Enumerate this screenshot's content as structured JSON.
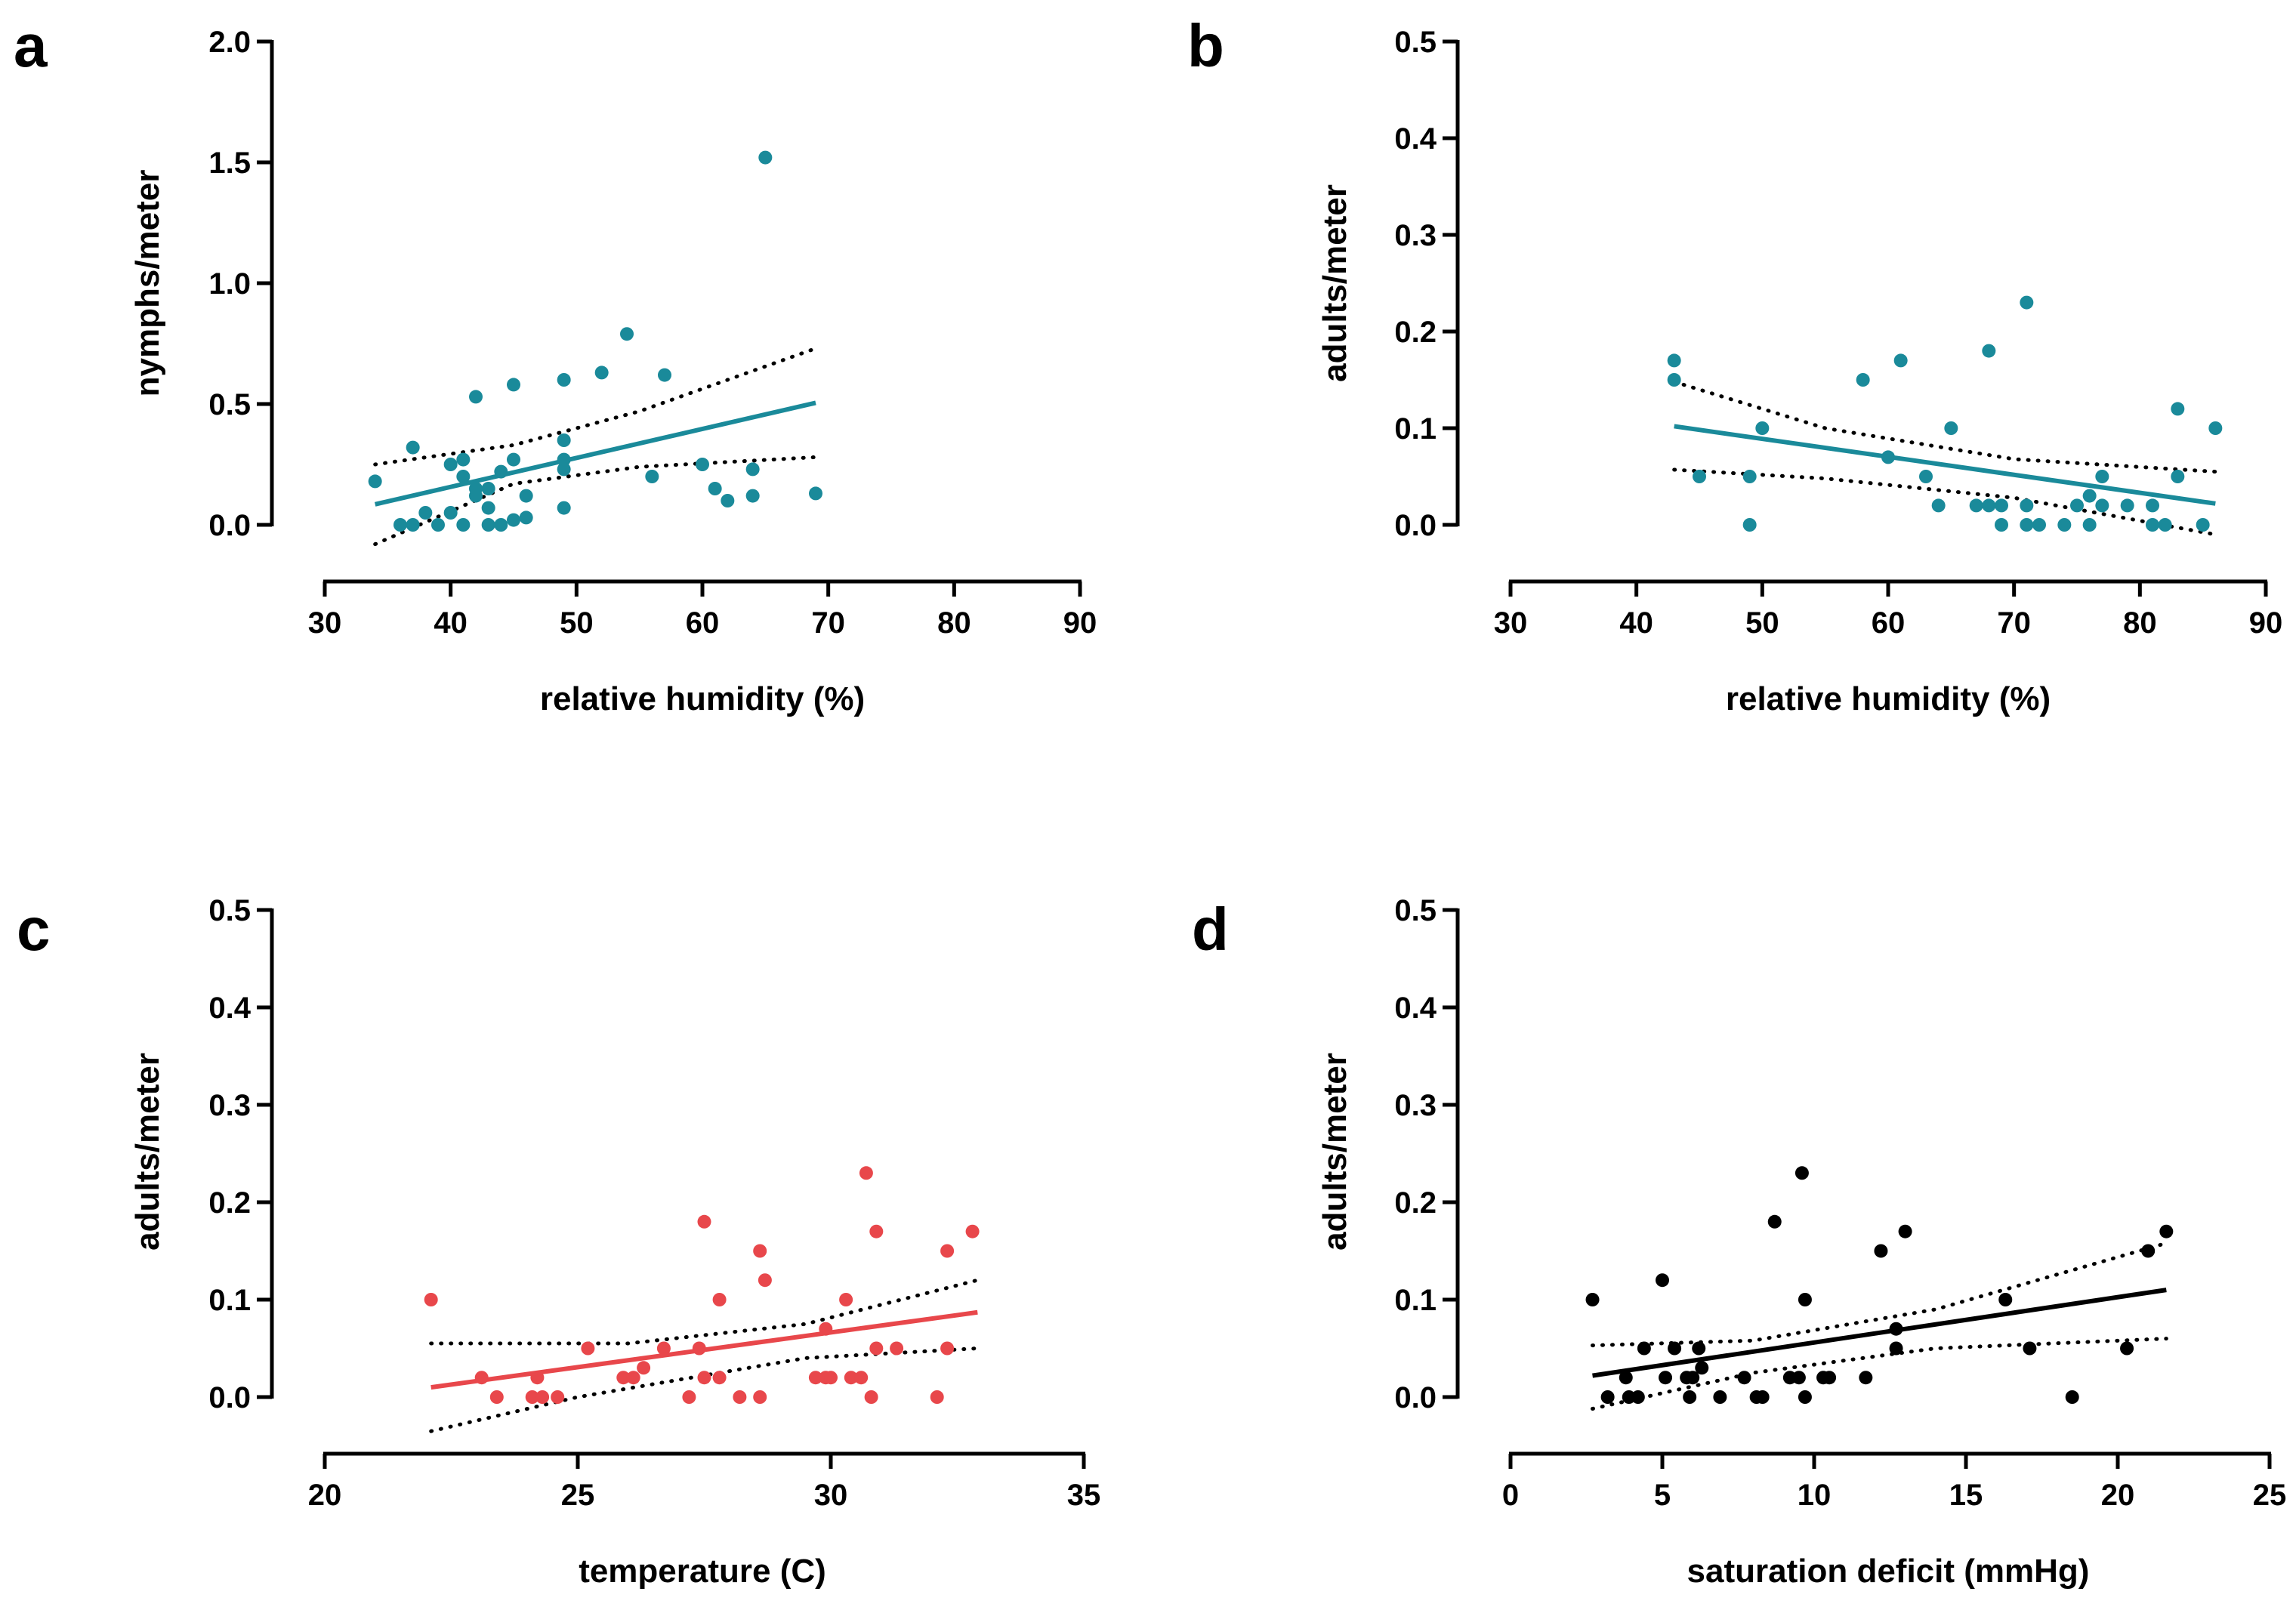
{
  "chart_data": [
    {
      "panel": "a",
      "type": "scatter",
      "xlabel": "relative humidity (%)",
      "ylabel": "nymphs/meter",
      "xlim": [
        30,
        90
      ],
      "ylim": [
        0,
        2.0
      ],
      "x_ticks": [
        "30",
        "40",
        "50",
        "60",
        "70",
        "80",
        "90"
      ],
      "y_ticks": [
        "0.0",
        "0.5",
        "1.0",
        "1.5",
        "2.0"
      ],
      "x_tick_values": [
        30,
        40,
        50,
        60,
        70,
        80,
        90
      ],
      "y_tick_values": [
        0,
        0.5,
        1.0,
        1.5,
        2.0
      ],
      "color": "#1a8a9a",
      "points": [
        [
          34,
          0.18
        ],
        [
          36,
          0.0
        ],
        [
          37,
          0.0
        ],
        [
          37,
          0.32
        ],
        [
          38,
          0.05
        ],
        [
          39,
          0.0
        ],
        [
          40,
          0.25
        ],
        [
          40,
          0.05
        ],
        [
          41,
          0.27
        ],
        [
          41,
          0.0
        ],
        [
          41,
          0.2
        ],
        [
          42,
          0.53
        ],
        [
          42,
          0.12
        ],
        [
          42,
          0.15
        ],
        [
          43,
          0.15
        ],
        [
          43,
          0.0
        ],
        [
          43,
          0.07
        ],
        [
          44,
          0.22
        ],
        [
          44,
          0.0
        ],
        [
          45,
          0.58
        ],
        [
          45,
          0.27
        ],
        [
          45,
          0.02
        ],
        [
          46,
          0.03
        ],
        [
          46,
          0.12
        ],
        [
          49,
          0.6
        ],
        [
          49,
          0.35
        ],
        [
          49,
          0.27
        ],
        [
          49,
          0.23
        ],
        [
          49,
          0.07
        ],
        [
          52,
          0.63
        ],
        [
          54,
          0.79
        ],
        [
          56,
          0.2
        ],
        [
          57,
          0.62
        ],
        [
          60,
          0.25
        ],
        [
          61,
          0.15
        ],
        [
          62,
          0.1
        ],
        [
          64,
          0.23
        ],
        [
          64,
          0.12
        ],
        [
          65,
          1.52
        ],
        [
          69,
          0.13
        ]
      ],
      "fit": [
        [
          34,
          0.085
        ],
        [
          69,
          0.505
        ]
      ],
      "ci_upper": [
        [
          34,
          0.25
        ],
        [
          45,
          0.33
        ],
        [
          55,
          0.47
        ],
        [
          69,
          0.73
        ]
      ],
      "ci_lower": [
        [
          34,
          -0.08
        ],
        [
          45,
          0.17
        ],
        [
          55,
          0.24
        ],
        [
          69,
          0.28
        ]
      ]
    },
    {
      "panel": "b",
      "type": "scatter",
      "xlabel": "relative humidity (%)",
      "ylabel": "adults/meter",
      "xlim": [
        30,
        90
      ],
      "ylim": [
        0,
        0.5
      ],
      "x_ticks": [
        "30",
        "40",
        "50",
        "60",
        "70",
        "80",
        "90"
      ],
      "y_ticks": [
        "0.0",
        "0.1",
        "0.2",
        "0.3",
        "0.4",
        "0.5"
      ],
      "x_tick_values": [
        30,
        40,
        50,
        60,
        70,
        80,
        90
      ],
      "y_tick_values": [
        0,
        0.1,
        0.2,
        0.3,
        0.4,
        0.5
      ],
      "color": "#1a8a9a",
      "points": [
        [
          43,
          0.17
        ],
        [
          43,
          0.15
        ],
        [
          45,
          0.05
        ],
        [
          49,
          0.05
        ],
        [
          49,
          0.0
        ],
        [
          50,
          0.1
        ],
        [
          58,
          0.15
        ],
        [
          60,
          0.07
        ],
        [
          61,
          0.17
        ],
        [
          63,
          0.05
        ],
        [
          64,
          0.02
        ],
        [
          65,
          0.1
        ],
        [
          67,
          0.02
        ],
        [
          68,
          0.18
        ],
        [
          68,
          0.02
        ],
        [
          69,
          0.02
        ],
        [
          69,
          0.0
        ],
        [
          71,
          0.23
        ],
        [
          71,
          0.02
        ],
        [
          71,
          0.0
        ],
        [
          72,
          0.0
        ],
        [
          74,
          0.0
        ],
        [
          75,
          0.02
        ],
        [
          76,
          0.03
        ],
        [
          76,
          0.0
        ],
        [
          77,
          0.05
        ],
        [
          77,
          0.02
        ],
        [
          79,
          0.02
        ],
        [
          81,
          0.02
        ],
        [
          81,
          0.0
        ],
        [
          82,
          0.0
        ],
        [
          83,
          0.12
        ],
        [
          83,
          0.05
        ],
        [
          85,
          0.0
        ],
        [
          86,
          0.1
        ]
      ],
      "fit": [
        [
          43,
          0.102
        ],
        [
          86,
          0.022
        ]
      ],
      "ci_upper": [
        [
          43,
          0.148
        ],
        [
          55,
          0.1
        ],
        [
          70,
          0.068
        ],
        [
          86,
          0.055
        ]
      ],
      "ci_lower": [
        [
          43,
          0.057
        ],
        [
          55,
          0.048
        ],
        [
          70,
          0.028
        ],
        [
          86,
          -0.01
        ]
      ]
    },
    {
      "panel": "c",
      "type": "scatter",
      "xlabel": "temperature (C)",
      "ylabel": "adults/meter",
      "xlim": [
        20,
        35
      ],
      "ylim": [
        0,
        0.5
      ],
      "x_ticks": [
        "20",
        "25",
        "30",
        "35"
      ],
      "y_ticks": [
        "0.0",
        "0.1",
        "0.2",
        "0.3",
        "0.4",
        "0.5"
      ],
      "x_tick_values": [
        20,
        25,
        30,
        35
      ],
      "y_tick_values": [
        0,
        0.1,
        0.2,
        0.3,
        0.4,
        0.5
      ],
      "color": "#e8474b",
      "points": [
        [
          22.1,
          0.1
        ],
        [
          23.1,
          0.02
        ],
        [
          23.4,
          0.0
        ],
        [
          24.1,
          0.0
        ],
        [
          24.2,
          0.02
        ],
        [
          24.3,
          0.0
        ],
        [
          24.6,
          0.0
        ],
        [
          25.2,
          0.05
        ],
        [
          25.9,
          0.02
        ],
        [
          26.1,
          0.02
        ],
        [
          26.3,
          0.03
        ],
        [
          26.7,
          0.05
        ],
        [
          27.2,
          0.0
        ],
        [
          27.4,
          0.05
        ],
        [
          27.5,
          0.18
        ],
        [
          27.5,
          0.02
        ],
        [
          27.8,
          0.02
        ],
        [
          27.8,
          0.1
        ],
        [
          28.2,
          0.0
        ],
        [
          28.6,
          0.15
        ],
        [
          28.6,
          0.0
        ],
        [
          28.7,
          0.12
        ],
        [
          29.7,
          0.02
        ],
        [
          29.9,
          0.07
        ],
        [
          29.9,
          0.02
        ],
        [
          30.0,
          0.02
        ],
        [
          30.3,
          0.1
        ],
        [
          30.4,
          0.02
        ],
        [
          30.6,
          0.02
        ],
        [
          30.7,
          0.23
        ],
        [
          30.8,
          0.0
        ],
        [
          30.9,
          0.17
        ],
        [
          30.9,
          0.05
        ],
        [
          31.3,
          0.05
        ],
        [
          32.1,
          0.0
        ],
        [
          32.3,
          0.15
        ],
        [
          32.3,
          0.05
        ],
        [
          32.8,
          0.17
        ]
      ],
      "fit": [
        [
          22.1,
          0.01
        ],
        [
          32.9,
          0.087
        ]
      ],
      "ci_upper": [
        [
          22.1,
          0.055
        ],
        [
          26,
          0.055
        ],
        [
          29.5,
          0.075
        ],
        [
          32.9,
          0.12
        ]
      ],
      "ci_lower": [
        [
          22.1,
          -0.035
        ],
        [
          25,
          0.0
        ],
        [
          29.5,
          0.04
        ],
        [
          32.9,
          0.05
        ]
      ]
    },
    {
      "panel": "d",
      "type": "scatter",
      "xlabel": "saturation deficit (mmHg)",
      "ylabel": "adults/meter",
      "xlim": [
        0,
        25
      ],
      "ylim": [
        0,
        0.5
      ],
      "x_ticks": [
        "0",
        "5",
        "10",
        "15",
        "20",
        "25"
      ],
      "y_ticks": [
        "0.0",
        "0.1",
        "0.2",
        "0.3",
        "0.4",
        "0.5"
      ],
      "x_tick_values": [
        0,
        5,
        10,
        15,
        20,
        25
      ],
      "y_tick_values": [
        0,
        0.1,
        0.2,
        0.3,
        0.4,
        0.5
      ],
      "color": "#000000",
      "points": [
        [
          2.7,
          0.1
        ],
        [
          3.2,
          0.0
        ],
        [
          3.8,
          0.02
        ],
        [
          3.9,
          0.0
        ],
        [
          4.2,
          0.0
        ],
        [
          4.4,
          0.05
        ],
        [
          5.0,
          0.12
        ],
        [
          5.1,
          0.02
        ],
        [
          5.4,
          0.05
        ],
        [
          5.8,
          0.02
        ],
        [
          5.9,
          0.0
        ],
        [
          6.0,
          0.02
        ],
        [
          6.2,
          0.05
        ],
        [
          6.3,
          0.03
        ],
        [
          6.9,
          0.0
        ],
        [
          7.7,
          0.02
        ],
        [
          8.1,
          0.0
        ],
        [
          8.3,
          0.0
        ],
        [
          8.7,
          0.18
        ],
        [
          9.2,
          0.02
        ],
        [
          9.5,
          0.02
        ],
        [
          9.6,
          0.23
        ],
        [
          9.7,
          0.1
        ],
        [
          9.7,
          0.0
        ],
        [
          10.3,
          0.02
        ],
        [
          10.5,
          0.02
        ],
        [
          11.7,
          0.02
        ],
        [
          12.2,
          0.15
        ],
        [
          12.7,
          0.05
        ],
        [
          12.7,
          0.07
        ],
        [
          13.0,
          0.17
        ],
        [
          16.3,
          0.1
        ],
        [
          17.1,
          0.05
        ],
        [
          18.5,
          0.0
        ],
        [
          20.3,
          0.05
        ],
        [
          21.0,
          0.15
        ],
        [
          21.6,
          0.17
        ]
      ],
      "fit": [
        [
          2.7,
          0.022
        ],
        [
          21.6,
          0.11
        ]
      ],
      "ci_upper": [
        [
          2.7,
          0.053
        ],
        [
          8,
          0.058
        ],
        [
          14,
          0.09
        ],
        [
          21.6,
          0.158
        ]
      ],
      "ci_lower": [
        [
          2.7,
          -0.012
        ],
        [
          8,
          0.025
        ],
        [
          14,
          0.05
        ],
        [
          21.6,
          0.06
        ]
      ]
    }
  ]
}
